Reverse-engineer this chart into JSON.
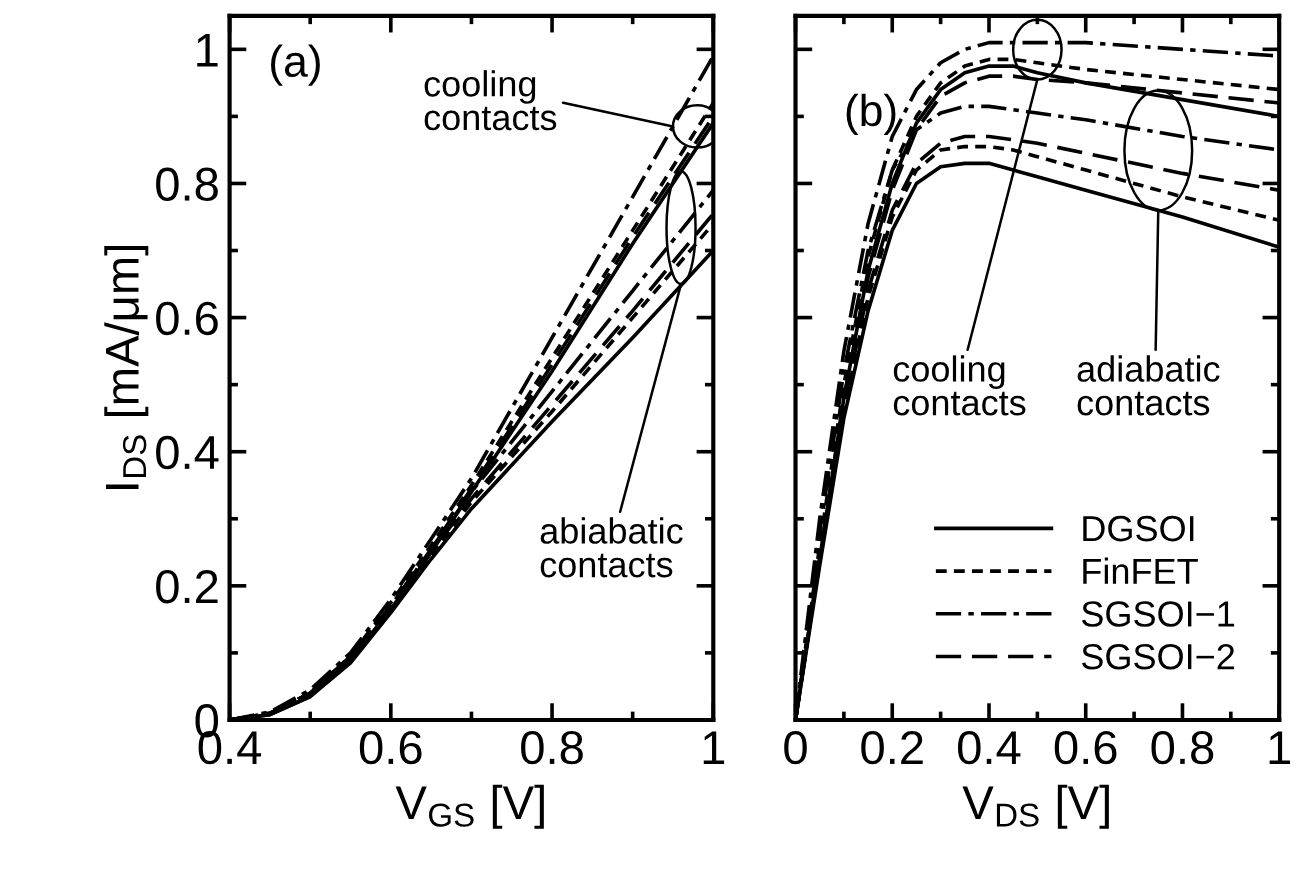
{
  "chart_data": [
    {
      "type": "line",
      "xlabel": "V$_{GS}$ [V]",
      "ylabel": "I$_{DS}$ [mA/μm]",
      "xlim": [
        0.4,
        1.0
      ],
      "ylim": [
        0,
        1.05
      ],
      "xticks": [
        {
          "value": 0.4,
          "label": "0.4"
        },
        {
          "value": 0.5,
          "label": null
        },
        {
          "value": 0.6,
          "label": "0.6"
        },
        {
          "value": 0.7,
          "label": null
        },
        {
          "value": 0.8,
          "label": "0.8"
        },
        {
          "value": 0.9,
          "label": null
        },
        {
          "value": 1.0,
          "label": "1"
        }
      ],
      "yticks": [
        0,
        {
          "value": 0.1,
          "label": null
        },
        0.2,
        {
          "value": 0.3,
          "label": null
        },
        0.4,
        {
          "value": 0.5,
          "label": null
        },
        0.6,
        {
          "value": 0.7,
          "label": null
        },
        0.8,
        {
          "value": 0.9,
          "label": null
        },
        1
      ],
      "grid": false,
      "legend": false,
      "x": [
        0.4,
        0.45,
        0.5,
        0.55,
        0.6,
        0.65,
        0.7,
        0.8,
        0.9,
        1.0
      ],
      "series": [
        {
          "color": "#000000",
          "line_style": "solid",
          "values": [
            0,
            0.008,
            0.035,
            0.09,
            0.165,
            0.25,
            0.34,
            0.52,
            0.71,
            0.89
          ]
        },
        {
          "color": "#000000",
          "line_style": "dotted",
          "values": [
            0,
            0.01,
            0.04,
            0.095,
            0.175,
            0.26,
            0.35,
            0.54,
            0.73,
            0.92
          ]
        },
        {
          "color": "#000000",
          "line_style": "dashdot",
          "values": [
            0,
            0.012,
            0.045,
            0.1,
            0.18,
            0.27,
            0.36,
            0.57,
            0.78,
            0.99
          ]
        },
        {
          "color": "#000000",
          "line_style": "dashed",
          "values": [
            0,
            0.01,
            0.04,
            0.095,
            0.17,
            0.255,
            0.345,
            0.53,
            0.72,
            0.9
          ]
        },
        {
          "color": "#000000",
          "line_style": "solid",
          "values": [
            0,
            0.008,
            0.035,
            0.085,
            0.16,
            0.24,
            0.315,
            0.445,
            0.57,
            0.7
          ]
        },
        {
          "color": "#000000",
          "line_style": "dotted",
          "values": [
            0,
            0.01,
            0.04,
            0.09,
            0.165,
            0.245,
            0.325,
            0.46,
            0.6,
            0.74
          ]
        },
        {
          "color": "#000000",
          "line_style": "dashdot",
          "values": [
            0,
            0.01,
            0.04,
            0.095,
            0.17,
            0.255,
            0.34,
            0.49,
            0.64,
            0.79
          ]
        },
        {
          "color": "#000000",
          "line_style": "dashed",
          "values": [
            0,
            0.01,
            0.04,
            0.09,
            0.165,
            0.25,
            0.33,
            0.47,
            0.61,
            0.755
          ]
        }
      ],
      "annotations": [
        "(a)",
        {
          "text": "cooling\ncontacts",
          "x": 0.95,
          "y": 0.885
        },
        {
          "text": "abiabatic\ncontacts",
          "x": 0.96,
          "y": 0.65
        }
      ]
    },
    {
      "type": "line",
      "xlabel": "V$_{DS}$ [V]",
      "xlim": [
        0,
        1.0
      ],
      "ylim": [
        0,
        1.05
      ],
      "tick_labels": "x",
      "xticks": [
        0,
        {
          "value": 0.1,
          "label": null
        },
        0.2,
        {
          "value": 0.3,
          "label": null
        },
        0.4,
        {
          "value": 0.5,
          "label": null
        },
        0.6,
        {
          "value": 0.7,
          "label": null
        },
        0.8,
        {
          "value": 0.9,
          "label": null
        },
        1
      ],
      "yticks": [
        0,
        {
          "value": 0.1,
          "label": null
        },
        0.2,
        {
          "value": 0.3,
          "label": null
        },
        0.4,
        {
          "value": 0.5,
          "label": null
        },
        0.6,
        {
          "value": 0.7,
          "label": null
        },
        0.8,
        {
          "value": 0.9,
          "label": null
        },
        1
      ],
      "grid": false,
      "legend": "bottom right",
      "x": [
        0,
        0.05,
        0.1,
        0.15,
        0.2,
        0.25,
        0.3,
        0.35,
        0.4,
        0.45,
        0.5,
        0.6,
        0.8,
        1.0
      ],
      "series": [
        {
          "name": "DGSOI",
          "color": "#000000",
          "line_style": "solid",
          "values": [
            0,
            0.24,
            0.48,
            0.67,
            0.8,
            0.89,
            0.94,
            0.965,
            0.975,
            0.975,
            0.965,
            0.95,
            0.925,
            0.9
          ]
        },
        {
          "name": "FinFET",
          "color": "#000000",
          "line_style": "dotted",
          "values": [
            0,
            0.26,
            0.5,
            0.69,
            0.82,
            0.9,
            0.95,
            0.975,
            0.985,
            0.985,
            0.98,
            0.97,
            0.955,
            0.94
          ]
        },
        {
          "name": "SGSOI−1",
          "color": "#000000",
          "line_style": "dashdot",
          "values": [
            0,
            0.3,
            0.55,
            0.74,
            0.87,
            0.94,
            0.98,
            1.0,
            1.01,
            1.01,
            1.01,
            1.01,
            1.0,
            0.99
          ]
        },
        {
          "name": "SGSOI−2",
          "color": "#000000",
          "line_style": "dashed",
          "values": [
            0,
            0.24,
            0.48,
            0.66,
            0.79,
            0.88,
            0.93,
            0.95,
            0.96,
            0.96,
            0.955,
            0.95,
            0.935,
            0.92
          ]
        },
        {
          "color": "#000000",
          "line_style": "solid",
          "values": [
            0,
            0.23,
            0.45,
            0.61,
            0.73,
            0.8,
            0.825,
            0.83,
            0.83,
            0.82,
            0.81,
            0.79,
            0.75,
            0.705
          ]
        },
        {
          "color": "#000000",
          "line_style": "dotted",
          "values": [
            0,
            0.24,
            0.46,
            0.63,
            0.75,
            0.82,
            0.85,
            0.855,
            0.855,
            0.85,
            0.84,
            0.82,
            0.78,
            0.745
          ]
        },
        {
          "color": "#000000",
          "line_style": "dashdot",
          "values": [
            0,
            0.28,
            0.52,
            0.7,
            0.82,
            0.88,
            0.905,
            0.915,
            0.915,
            0.91,
            0.905,
            0.895,
            0.87,
            0.85
          ]
        },
        {
          "color": "#000000",
          "line_style": "dashed",
          "values": [
            0,
            0.24,
            0.47,
            0.64,
            0.76,
            0.83,
            0.86,
            0.87,
            0.87,
            0.865,
            0.86,
            0.845,
            0.815,
            0.79
          ]
        }
      ],
      "annotations": [
        "(b)",
        {
          "text": "cooling\ncontacts",
          "x": 0.5,
          "y": 0.955
        },
        {
          "text": "adiabatic\ncontacts",
          "x": 0.75,
          "y": 0.76
        }
      ]
    }
  ]
}
